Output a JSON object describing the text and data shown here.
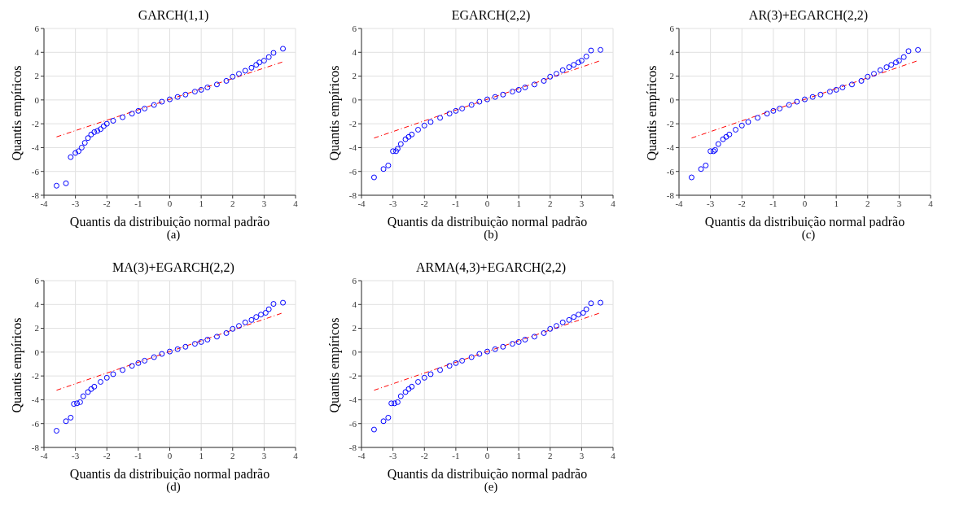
{
  "chart_data": [
    {
      "type": "scatter",
      "title": "GARCH(1,1)",
      "xlabel": "Quantis da distribuição normal padrão",
      "ylabel": "Quantis empíricos",
      "annotations": [
        "(a)"
      ],
      "xlim": [
        -4,
        4
      ],
      "xticks": [
        -4,
        -3,
        -2,
        -1,
        0,
        1,
        2,
        3,
        4
      ],
      "ylim": [
        -8,
        6
      ],
      "yticks": [
        -8,
        -6,
        -4,
        -2,
        0,
        2,
        4,
        6
      ],
      "grid": true,
      "series": [
        {
          "color": "#0000ff",
          "marker": "circle",
          "x": [
            -3.6,
            -3.3,
            -3.15,
            -3.0,
            -2.9,
            -2.8,
            -2.7,
            -2.6,
            -2.5,
            -2.4,
            -2.3,
            -2.2,
            -2.1,
            -2.0,
            -1.8,
            -1.5,
            -1.2,
            -1.0,
            -0.8,
            -0.5,
            -0.25,
            0,
            0.25,
            0.5,
            0.8,
            1.0,
            1.2,
            1.5,
            1.8,
            2.0,
            2.2,
            2.4,
            2.6,
            2.75,
            2.85,
            3.0,
            3.15,
            3.3,
            3.6
          ],
          "values": [
            -7.2,
            -7.0,
            -4.8,
            -4.45,
            -4.3,
            -4.0,
            -3.6,
            -3.2,
            -2.9,
            -2.7,
            -2.6,
            -2.45,
            -2.2,
            -2.0,
            -1.75,
            -1.45,
            -1.15,
            -0.92,
            -0.72,
            -0.42,
            -0.15,
            0.05,
            0.25,
            0.45,
            0.7,
            0.85,
            1.05,
            1.3,
            1.6,
            1.95,
            2.2,
            2.45,
            2.7,
            2.95,
            3.15,
            3.3,
            3.6,
            3.95,
            4.3
          ]
        },
        {
          "type": "line",
          "color": "#ff0000",
          "line_style": "dashed",
          "x": [
            -3.6,
            3.6
          ],
          "values": [
            -3.1,
            3.2
          ]
        }
      ]
    },
    {
      "type": "scatter",
      "title": "EGARCH(2,2)",
      "xlabel": "Quantis da distribuição normal padrão",
      "ylabel": "Quantis empíricos",
      "annotations": [
        "(b)"
      ],
      "xlim": [
        -4,
        4
      ],
      "xticks": [
        -4,
        -3,
        -2,
        -1,
        0,
        1,
        2,
        3,
        4
      ],
      "ylim": [
        -8,
        6
      ],
      "yticks": [
        -8,
        -6,
        -4,
        -2,
        0,
        2,
        4,
        6
      ],
      "grid": true,
      "series": [
        {
          "color": "#0000ff",
          "marker": "circle",
          "x": [
            -3.6,
            -3.3,
            -3.15,
            -3.0,
            -2.9,
            -2.85,
            -2.75,
            -2.6,
            -2.5,
            -2.4,
            -2.2,
            -2.0,
            -1.8,
            -1.5,
            -1.2,
            -1.0,
            -0.8,
            -0.5,
            -0.25,
            0,
            0.25,
            0.5,
            0.8,
            1.0,
            1.2,
            1.5,
            1.8,
            2.0,
            2.2,
            2.4,
            2.6,
            2.75,
            2.9,
            3.0,
            3.15,
            3.3,
            3.6
          ],
          "values": [
            -6.5,
            -5.8,
            -5.5,
            -4.3,
            -4.3,
            -4.1,
            -3.7,
            -3.3,
            -3.1,
            -2.9,
            -2.5,
            -2.15,
            -1.85,
            -1.5,
            -1.15,
            -0.92,
            -0.72,
            -0.42,
            -0.15,
            0.05,
            0.25,
            0.45,
            0.7,
            0.85,
            1.05,
            1.3,
            1.6,
            1.95,
            2.2,
            2.5,
            2.75,
            2.95,
            3.15,
            3.3,
            3.65,
            4.15,
            4.2
          ]
        },
        {
          "type": "line",
          "color": "#ff0000",
          "line_style": "dashed",
          "x": [
            -3.6,
            3.6
          ],
          "values": [
            -3.2,
            3.3
          ]
        }
      ]
    },
    {
      "type": "scatter",
      "title": "AR(3)+EGARCH(2,2)",
      "xlabel": "Quantis da distribuição normal padrão",
      "ylabel": "Quantis empíricos",
      "annotations": [
        "(c)"
      ],
      "xlim": [
        -4,
        4
      ],
      "xticks": [
        -4,
        -3,
        -2,
        -1,
        0,
        1,
        2,
        3,
        4
      ],
      "ylim": [
        -8,
        6
      ],
      "yticks": [
        -8,
        -6,
        -4,
        -2,
        0,
        2,
        4,
        6
      ],
      "grid": true,
      "series": [
        {
          "color": "#0000ff",
          "marker": "circle",
          "x": [
            -3.6,
            -3.3,
            -3.15,
            -3.0,
            -2.9,
            -2.85,
            -2.75,
            -2.6,
            -2.5,
            -2.4,
            -2.2,
            -2.0,
            -1.8,
            -1.5,
            -1.2,
            -1.0,
            -0.8,
            -0.5,
            -0.25,
            0,
            0.25,
            0.5,
            0.8,
            1.0,
            1.2,
            1.5,
            1.8,
            2.0,
            2.2,
            2.4,
            2.6,
            2.75,
            2.9,
            3.0,
            3.15,
            3.3,
            3.6
          ],
          "values": [
            -6.5,
            -5.8,
            -5.5,
            -4.3,
            -4.3,
            -4.2,
            -3.7,
            -3.3,
            -3.1,
            -2.9,
            -2.5,
            -2.15,
            -1.85,
            -1.5,
            -1.15,
            -0.92,
            -0.72,
            -0.42,
            -0.15,
            0.05,
            0.25,
            0.45,
            0.7,
            0.85,
            1.05,
            1.3,
            1.6,
            1.95,
            2.2,
            2.5,
            2.75,
            2.95,
            3.15,
            3.3,
            3.6,
            4.1,
            4.2
          ]
        },
        {
          "type": "line",
          "color": "#ff0000",
          "line_style": "dashed",
          "x": [
            -3.6,
            3.6
          ],
          "values": [
            -3.2,
            3.3
          ]
        }
      ]
    },
    {
      "type": "scatter",
      "title": "MA(3)+EGARCH(2,2)",
      "xlabel": "Quantis da distribuição normal padrão",
      "ylabel": "Quantis empíricos",
      "annotations": [
        "(d)"
      ],
      "xlim": [
        -4,
        4
      ],
      "xticks": [
        -4,
        -3,
        -2,
        -1,
        0,
        1,
        2,
        3,
        4
      ],
      "ylim": [
        -8,
        6
      ],
      "yticks": [
        -8,
        -6,
        -4,
        -2,
        0,
        2,
        4,
        6
      ],
      "grid": true,
      "series": [
        {
          "color": "#0000ff",
          "marker": "circle",
          "x": [
            -3.6,
            -3.3,
            -3.15,
            -3.05,
            -2.95,
            -2.85,
            -2.75,
            -2.6,
            -2.5,
            -2.4,
            -2.2,
            -2.0,
            -1.8,
            -1.5,
            -1.2,
            -1.0,
            -0.8,
            -0.5,
            -0.25,
            0,
            0.25,
            0.5,
            0.8,
            1.0,
            1.2,
            1.5,
            1.8,
            2.0,
            2.2,
            2.4,
            2.6,
            2.75,
            2.9,
            3.05,
            3.15,
            3.3,
            3.6
          ],
          "values": [
            -6.6,
            -5.8,
            -5.5,
            -4.35,
            -4.3,
            -4.2,
            -3.7,
            -3.35,
            -3.1,
            -2.9,
            -2.5,
            -2.15,
            -1.85,
            -1.5,
            -1.15,
            -0.92,
            -0.72,
            -0.42,
            -0.15,
            0.05,
            0.25,
            0.45,
            0.7,
            0.85,
            1.05,
            1.3,
            1.6,
            1.95,
            2.2,
            2.5,
            2.7,
            2.95,
            3.15,
            3.3,
            3.6,
            4.05,
            4.15
          ]
        },
        {
          "type": "line",
          "color": "#ff0000",
          "line_style": "dashed",
          "x": [
            -3.6,
            3.6
          ],
          "values": [
            -3.2,
            3.3
          ]
        }
      ]
    },
    {
      "type": "scatter",
      "title": "ARMA(4,3)+EGARCH(2,2)",
      "xlabel": "Quantis da distribuição normal padrão",
      "ylabel": "Quantis empíricos",
      "annotations": [
        "(e)"
      ],
      "xlim": [
        -4,
        4
      ],
      "xticks": [
        -4,
        -3,
        -2,
        -1,
        0,
        1,
        2,
        3,
        4
      ],
      "ylim": [
        -8,
        6
      ],
      "yticks": [
        -8,
        -6,
        -4,
        -2,
        0,
        2,
        4,
        6
      ],
      "grid": true,
      "series": [
        {
          "color": "#0000ff",
          "marker": "circle",
          "x": [
            -3.6,
            -3.3,
            -3.15,
            -3.05,
            -2.95,
            -2.85,
            -2.75,
            -2.6,
            -2.5,
            -2.4,
            -2.2,
            -2.0,
            -1.8,
            -1.5,
            -1.2,
            -1.0,
            -0.8,
            -0.5,
            -0.25,
            0,
            0.25,
            0.5,
            0.8,
            1.0,
            1.2,
            1.5,
            1.8,
            2.0,
            2.2,
            2.4,
            2.6,
            2.75,
            2.9,
            3.05,
            3.15,
            3.3,
            3.6
          ],
          "values": [
            -6.5,
            -5.8,
            -5.5,
            -4.3,
            -4.3,
            -4.2,
            -3.7,
            -3.35,
            -3.1,
            -2.9,
            -2.5,
            -2.15,
            -1.85,
            -1.5,
            -1.15,
            -0.92,
            -0.72,
            -0.42,
            -0.15,
            0.05,
            0.25,
            0.45,
            0.7,
            0.85,
            1.05,
            1.3,
            1.6,
            1.95,
            2.2,
            2.5,
            2.7,
            2.95,
            3.15,
            3.3,
            3.6,
            4.1,
            4.15
          ]
        },
        {
          "type": "line",
          "color": "#ff0000",
          "line_style": "dashed",
          "x": [
            -3.6,
            3.6
          ],
          "values": [
            -3.2,
            3.3
          ]
        }
      ]
    }
  ]
}
